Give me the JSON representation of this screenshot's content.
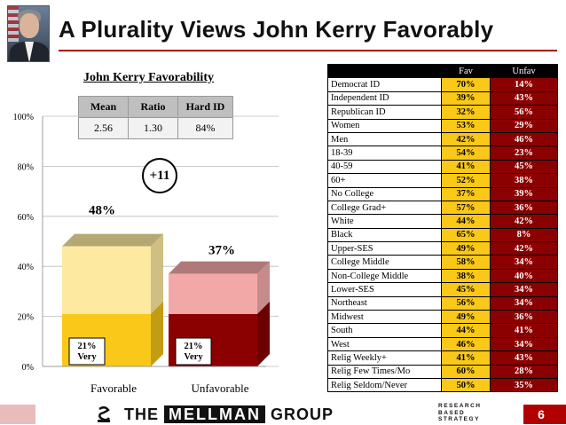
{
  "title": "A Plurality Views John Kerry Favorably",
  "photo": {
    "icon": "portrait-photo"
  },
  "colors": {
    "accent": "#b00000",
    "fav": "#f9c818",
    "unfav": "#8b0000"
  },
  "stats": {
    "headers": [
      "Mean",
      "Ratio",
      "Hard ID"
    ],
    "values": [
      "2.56",
      "1.30",
      "84%"
    ]
  },
  "lead": "+11",
  "chart_data": {
    "type": "bar",
    "title": "John Kerry Favorability",
    "categories": [
      "Favorable",
      "Unfavorable"
    ],
    "series": [
      {
        "name": "Very",
        "values": [
          21,
          21
        ]
      },
      {
        "name": "",
        "values": [
          27,
          16
        ]
      }
    ],
    "totals": [
      48,
      37
    ],
    "total_labels": [
      "48%",
      "37%"
    ],
    "very_labels": [
      "21%\nVery",
      "21%\nVery"
    ],
    "ylim": [
      0,
      100
    ],
    "yticks": [
      0,
      20,
      40,
      60,
      80,
      100
    ],
    "ytick_labels": [
      "0%",
      "20%",
      "40%",
      "60%",
      "80%",
      "100%"
    ],
    "colors": {
      "fav_soft": "#fde9a0",
      "fav_very": "#f9c818",
      "unfav_soft": "#f3a8a8",
      "unfav_very": "#8b0000"
    }
  },
  "crosstab": {
    "headers": [
      "",
      "Fav",
      "Unfav"
    ],
    "rows": [
      {
        "label": "Democrat ID",
        "fav": "70%",
        "unfav": "14%"
      },
      {
        "label": "Independent ID",
        "fav": "39%",
        "unfav": "43%"
      },
      {
        "label": "Republican ID",
        "fav": "32%",
        "unfav": "56%"
      },
      {
        "label": "Women",
        "fav": "53%",
        "unfav": "29%"
      },
      {
        "label": "Men",
        "fav": "42%",
        "unfav": "46%"
      },
      {
        "label": "18-39",
        "fav": "54%",
        "unfav": "23%"
      },
      {
        "label": "40-59",
        "fav": "41%",
        "unfav": "45%"
      },
      {
        "label": "60+",
        "fav": "52%",
        "unfav": "38%"
      },
      {
        "label": "No College",
        "fav": "37%",
        "unfav": "39%"
      },
      {
        "label": "College Grad+",
        "fav": "57%",
        "unfav": "36%"
      },
      {
        "label": "White",
        "fav": "44%",
        "unfav": "42%"
      },
      {
        "label": "Black",
        "fav": "65%",
        "unfav": "8%"
      },
      {
        "label": "Upper-SES",
        "fav": "49%",
        "unfav": "42%"
      },
      {
        "label": "College Middle",
        "fav": "58%",
        "unfav": "34%"
      },
      {
        "label": "Non-College Middle",
        "fav": "38%",
        "unfav": "40%"
      },
      {
        "label": "Lower-SES",
        "fav": "45%",
        "unfav": "34%"
      },
      {
        "label": "Northeast",
        "fav": "56%",
        "unfav": "34%"
      },
      {
        "label": "Midwest",
        "fav": "49%",
        "unfav": "36%"
      },
      {
        "label": "South",
        "fav": "44%",
        "unfav": "41%"
      },
      {
        "label": "West",
        "fav": "46%",
        "unfav": "34%"
      },
      {
        "label": "Relig Weekly+",
        "fav": "41%",
        "unfav": "43%"
      },
      {
        "label": "Relig Few Times/Mo",
        "fav": "60%",
        "unfav": "28%"
      },
      {
        "label": "Relig Seldom/Never",
        "fav": "50%",
        "unfav": "35%"
      }
    ]
  },
  "footer": {
    "logo_left": "THE",
    "logo_mid": "MELLMAN",
    "logo_right": "GROUP",
    "tagline": [
      "RESEARCH",
      "BASED",
      "STRATEGY"
    ],
    "page": "6",
    "logo_icon": "mellman-logo-icon"
  }
}
